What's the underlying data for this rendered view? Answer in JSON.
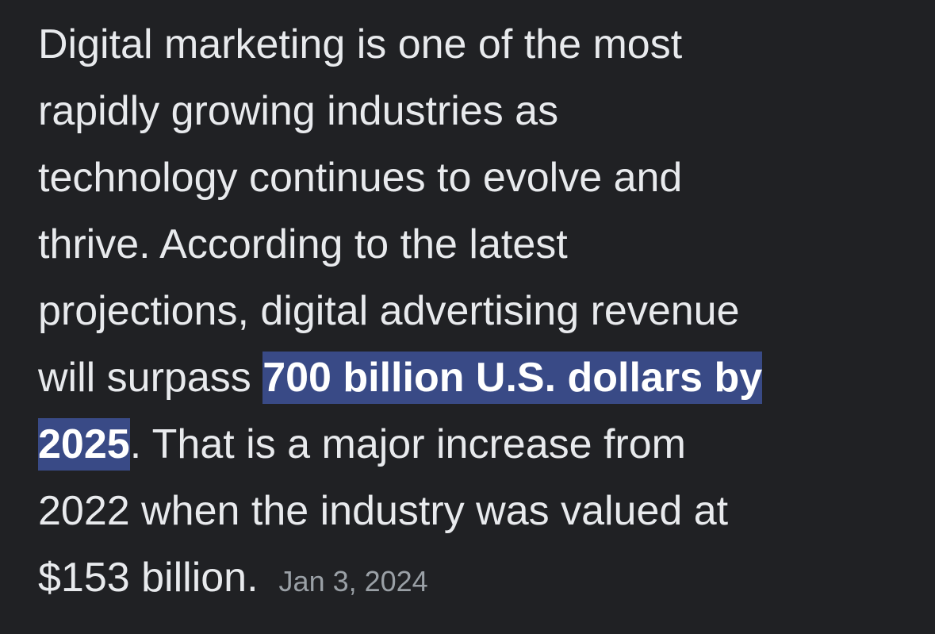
{
  "snippet": {
    "lines": [
      [
        {
          "text": "Digital marketing is one of the most"
        }
      ],
      [
        {
          "text": "rapidly growing industries as"
        }
      ],
      [
        {
          "text": "technology continues to evolve and"
        }
      ],
      [
        {
          "text": "thrive. According to the latest"
        }
      ],
      [
        {
          "text": "projections, digital advertising revenue"
        }
      ],
      [
        {
          "text": "will surpass "
        },
        {
          "text": "700 billion U.S. dollars by",
          "highlight": true
        }
      ],
      [
        {
          "text": "2025",
          "highlight": true
        },
        {
          "text": ". That is a major increase from"
        }
      ],
      [
        {
          "text": "2022 when the industry was valued at"
        }
      ],
      [
        {
          "text": "$153 billion."
        }
      ]
    ],
    "date": "Jan 3, 2024"
  }
}
